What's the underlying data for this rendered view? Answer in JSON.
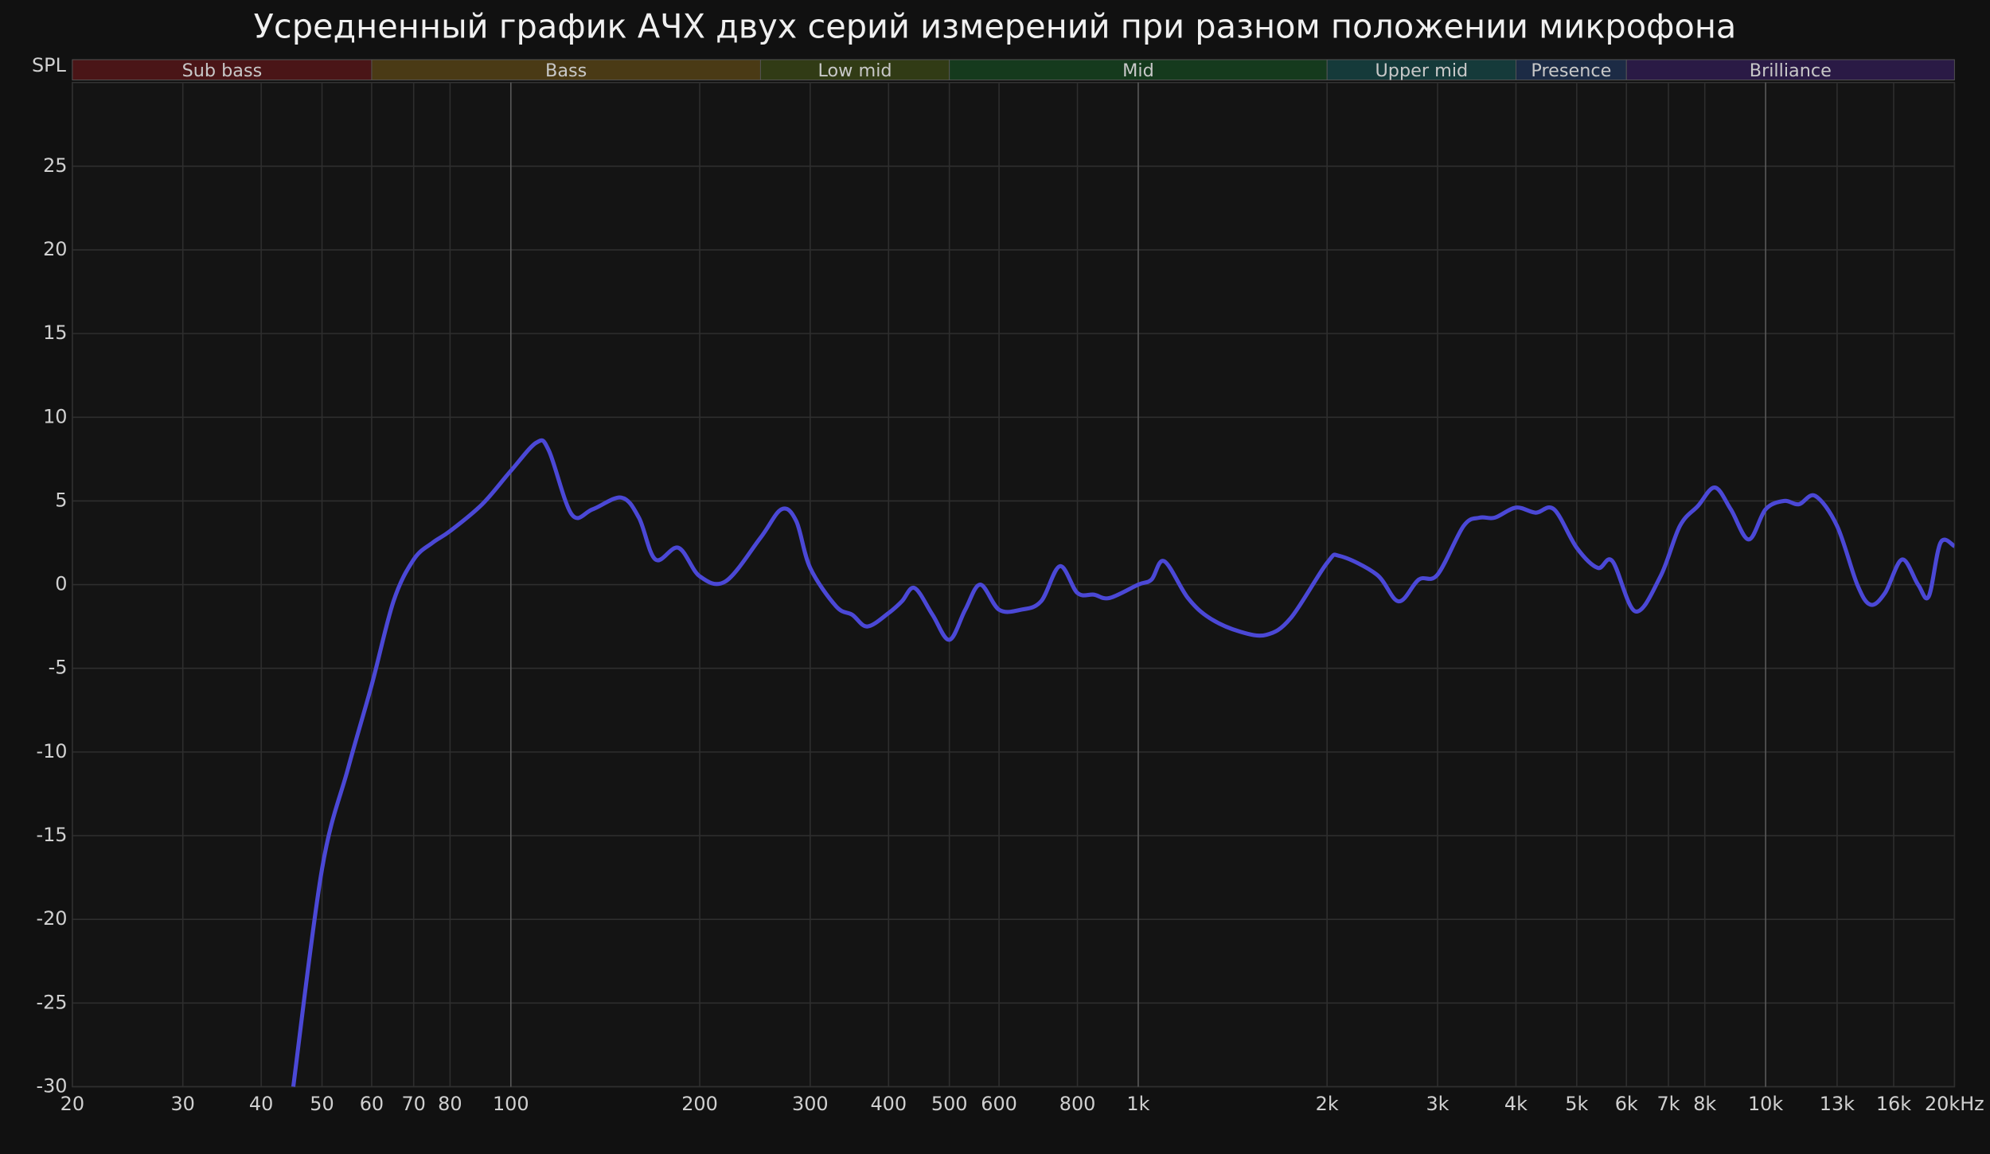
{
  "chart_data": {
    "type": "line",
    "title": "Усредненный график АЧХ двух серий измерений при разном положении микрофона",
    "ylabel": "SPL",
    "xscale": "log",
    "xlim": [
      20,
      20000
    ],
    "ylim": [
      -30,
      30
    ],
    "grid": true,
    "yticks": [
      -30,
      -25,
      -20,
      -15,
      -10,
      -5,
      0,
      5,
      10,
      15,
      20,
      25
    ],
    "xticks": [
      20,
      30,
      40,
      50,
      60,
      70,
      80,
      100,
      200,
      300,
      400,
      500,
      600,
      800,
      {
        "value": 1000,
        "label": "1k"
      },
      {
        "value": 2000,
        "label": "2k"
      },
      {
        "value": 3000,
        "label": "3k"
      },
      {
        "value": 4000,
        "label": "4k"
      },
      {
        "value": 5000,
        "label": "5k"
      },
      {
        "value": 6000,
        "label": "6k"
      },
      {
        "value": 7000,
        "label": "7k"
      },
      {
        "value": 8000,
        "label": "8k"
      },
      {
        "value": 10000,
        "label": "10k"
      },
      {
        "value": 13000,
        "label": "13k"
      },
      {
        "value": 16000,
        "label": "16k"
      },
      {
        "value": 20000,
        "label": "20kHz"
      }
    ],
    "bands": [
      {
        "name": "Sub bass",
        "start": 20,
        "end": 60,
        "color": "#4a1517"
      },
      {
        "name": "Bass",
        "start": 60,
        "end": 250,
        "color": "#4a3a15"
      },
      {
        "name": "Low mid",
        "start": 250,
        "end": 500,
        "color": "#313b15"
      },
      {
        "name": "Mid",
        "start": 500,
        "end": 2000,
        "color": "#153a1d"
      },
      {
        "name": "Upper mid",
        "start": 2000,
        "end": 4000,
        "color": "#153a3a"
      },
      {
        "name": "Presence",
        "start": 4000,
        "end": 6000,
        "color": "#1c2b45"
      },
      {
        "name": "Brilliance",
        "start": 6000,
        "end": 20000,
        "color": "#2a1a45"
      }
    ],
    "x": [
      45,
      50,
      55,
      60,
      65,
      70,
      75,
      80,
      90,
      100,
      110,
      115,
      125,
      135,
      150,
      160,
      170,
      185,
      200,
      220,
      250,
      270,
      285,
      300,
      330,
      350,
      370,
      400,
      420,
      440,
      470,
      500,
      530,
      560,
      600,
      650,
      700,
      750,
      800,
      850,
      900,
      1000,
      1050,
      1100,
      1200,
      1300,
      1450,
      1600,
      1750,
      2000,
      2100,
      2400,
      2600,
      2800,
      3000,
      3300,
      3500,
      3700,
      4000,
      4300,
      4600,
      5000,
      5400,
      5700,
      6200,
      6800,
      7300,
      7800,
      8300,
      8800,
      9400,
      10000,
      10700,
      11300,
      12000,
      13000,
      14000,
      14700,
      15500,
      16500,
      17500,
      18200,
      19000,
      20000
    ],
    "series": [
      {
        "color": "#4b48d6",
        "values": [
          -30,
          -17,
          -11,
          -6,
          -1,
          1.5,
          2.5,
          3.2,
          4.8,
          6.8,
          8.5,
          8,
          4.2,
          4.5,
          5.2,
          4,
          1.5,
          2.2,
          0.5,
          0.2,
          2.8,
          4.5,
          3.8,
          1,
          -1.3,
          -1.8,
          -2.5,
          -1.7,
          -1,
          -0.2,
          -1.8,
          -3.3,
          -1.5,
          0,
          -1.5,
          -1.5,
          -1,
          1.1,
          -0.5,
          -0.6,
          -0.8,
          0,
          0.3,
          1.4,
          -0.8,
          -2,
          -2.8,
          -3,
          -2,
          1.3,
          1.7,
          0.6,
          -1,
          0.3,
          0.6,
          3.5,
          4,
          4,
          4.6,
          4.3,
          4.5,
          2.2,
          1,
          1.4,
          -1.6,
          0.5,
          3.5,
          4.7,
          5.8,
          4.5,
          2.7,
          4.5,
          5,
          4.8,
          5.3,
          3.5,
          0,
          -1.2,
          -0.5,
          1.5,
          0,
          -0.7,
          2.5,
          2.3
        ]
      }
    ]
  }
}
